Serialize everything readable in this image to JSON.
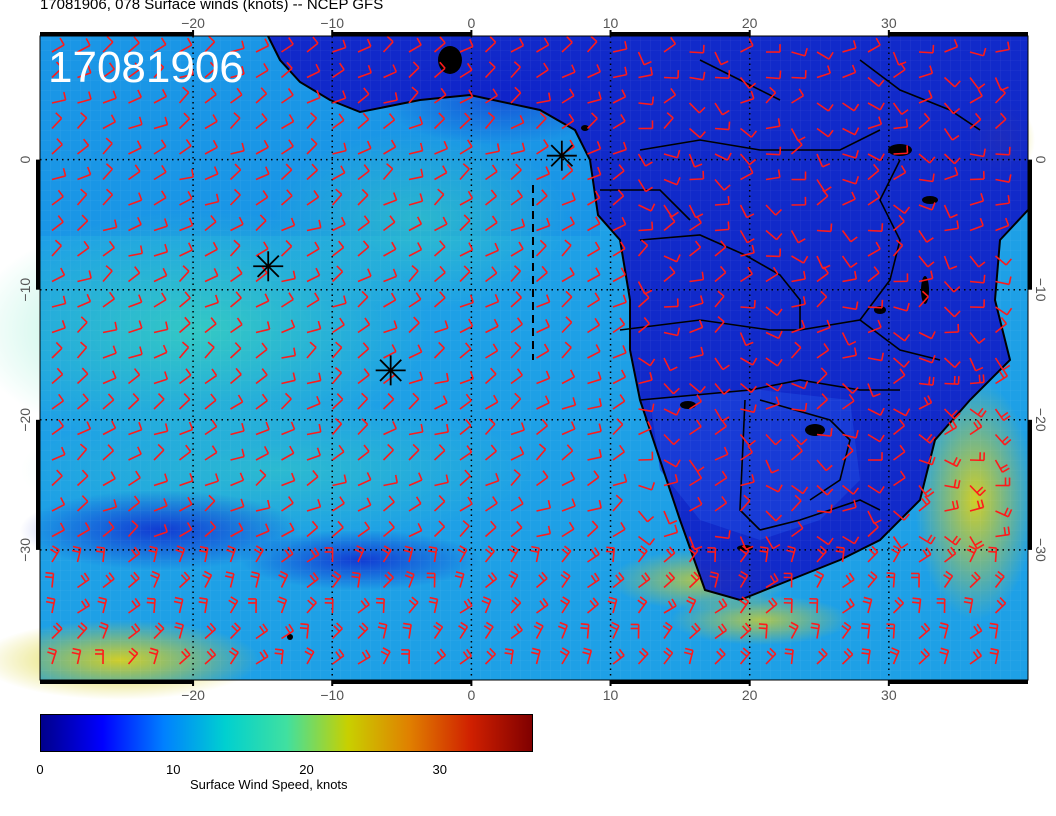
{
  "title": "17081906, 078 Surface winds (knots) -- NCEP GFS",
  "stamp": "17081906",
  "map": {
    "lon_range": [
      -31,
      40
    ],
    "lat_range": [
      -40,
      9.5
    ],
    "lon_ticks": [
      -20,
      -10,
      0,
      10,
      20,
      30
    ],
    "lat_ticks": [
      0,
      -10,
      -20,
      -30
    ],
    "lon_tick_labels": [
      "−20",
      "−10",
      "0",
      "10",
      "20",
      "30"
    ],
    "lat_tick_labels": [
      "0",
      "−10",
      "−20",
      "−30"
    ],
    "barb_color": "#ff1a1a",
    "markers": [
      {
        "name": "storm-marker-1",
        "lon": -14.6,
        "lat": -8.2
      },
      {
        "name": "storm-marker-2",
        "lon": -5.8,
        "lat": -16.2
      },
      {
        "name": "storm-marker-3",
        "lon": 6.5,
        "lat": 0.3
      }
    ]
  },
  "colorbar": {
    "label": "Surface Wind Speed, knots",
    "ticks": [
      "0",
      "10",
      "20",
      "30"
    ],
    "tick_values": [
      0,
      10,
      20,
      30
    ],
    "max": 37,
    "colors": [
      "#00008b",
      "#0000ff",
      "#0080ff",
      "#00d0d0",
      "#40e0a0",
      "#c8d000",
      "#e08000",
      "#d02000",
      "#800000"
    ]
  }
}
